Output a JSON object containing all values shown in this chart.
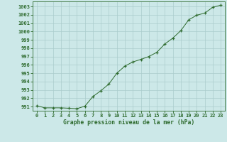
{
  "x": [
    0,
    1,
    2,
    3,
    4,
    5,
    6,
    7,
    8,
    9,
    10,
    11,
    12,
    13,
    14,
    15,
    16,
    17,
    18,
    19,
    20,
    21,
    22,
    23
  ],
  "y": [
    991.1,
    990.85,
    990.85,
    990.85,
    990.8,
    990.75,
    991.05,
    992.2,
    992.9,
    993.7,
    995.0,
    995.85,
    996.35,
    996.65,
    997.0,
    997.5,
    998.5,
    999.2,
    1000.1,
    1001.4,
    1001.95,
    1002.2,
    1002.9,
    1003.15
  ],
  "line_color": "#2d6a2d",
  "marker": "+",
  "marker_color": "#2d6a2d",
  "bg_color": "#cce8e8",
  "grid_color": "#aacccc",
  "xlabel": "Graphe pression niveau de la mer (hPa)",
  "xlabel_color": "#2d6a2d",
  "tick_color": "#2d6a2d",
  "ylim": [
    990.5,
    1003.6
  ],
  "yticks": [
    991,
    992,
    993,
    994,
    995,
    996,
    997,
    998,
    999,
    1000,
    1001,
    1002,
    1003
  ],
  "xlim": [
    -0.5,
    23.5
  ],
  "xticks": [
    0,
    1,
    2,
    3,
    4,
    5,
    6,
    7,
    8,
    9,
    10,
    11,
    12,
    13,
    14,
    15,
    16,
    17,
    18,
    19,
    20,
    21,
    22,
    23
  ],
  "xtick_labels": [
    "0",
    "1",
    "2",
    "3",
    "4",
    "5",
    "6",
    "7",
    "8",
    "9",
    "10",
    "11",
    "12",
    "13",
    "14",
    "15",
    "16",
    "17",
    "18",
    "19",
    "20",
    "21",
    "22",
    "23"
  ]
}
